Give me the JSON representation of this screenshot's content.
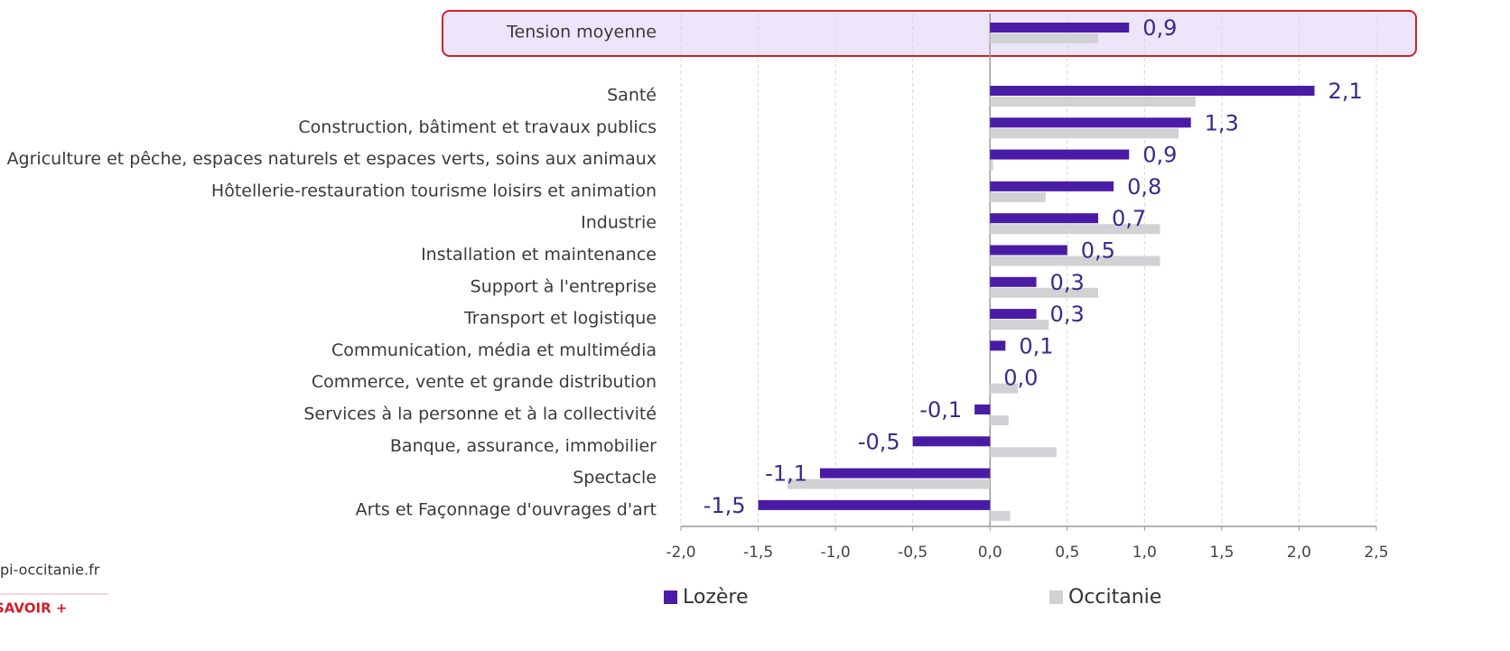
{
  "chart_data": {
    "type": "bar",
    "orientation": "horizontal",
    "categories": [
      "Tension moyenne",
      "Santé",
      "Construction, bâtiment et travaux publics",
      "Agriculture et pêche, espaces naturels et espaces verts, soins aux animaux",
      "Hôtellerie-restauration tourisme loisirs et animation",
      "Industrie",
      "Installation et maintenance",
      "Support à l'entreprise",
      "Transport et logistique",
      "Communication, média et multimédia",
      "Commerce, vente et grande distribution",
      "Services à la personne et à la collectivité",
      "Banque, assurance, immobilier",
      "Spectacle",
      "Arts et Façonnage d'ouvrages d'art"
    ],
    "series": [
      {
        "name": "Lozère",
        "color": "#4a1ca6",
        "values": [
          0.9,
          2.1,
          1.3,
          0.9,
          0.8,
          0.7,
          0.5,
          0.3,
          0.3,
          0.1,
          0.0,
          -0.1,
          -0.5,
          -1.1,
          -1.5
        ],
        "value_labels": [
          "0,9",
          "2,1",
          "1,3",
          "0,9",
          "0,8",
          "0,7",
          "0,5",
          "0,3",
          "0,3",
          "0,1",
          "0,0",
          "-0,1",
          "-0,5",
          "-1,1",
          "-1,5"
        ]
      },
      {
        "name": "Occitanie",
        "color": "#d2d1d3",
        "values": [
          0.7,
          1.33,
          1.22,
          0.02,
          0.36,
          1.1,
          1.1,
          0.7,
          0.38,
          0.0,
          0.18,
          0.12,
          0.43,
          -1.31,
          0.13
        ]
      }
    ],
    "xlim": [
      -2.0,
      2.5
    ],
    "xticks": [
      {
        "value": -2.0,
        "label": "-2,0"
      },
      {
        "value": -1.5,
        "label": "-1,5"
      },
      {
        "value": -1.0,
        "label": "-1,0"
      },
      {
        "value": -0.5,
        "label": "-0,5"
      },
      {
        "value": 0.0,
        "label": "0,0"
      },
      {
        "value": 0.5,
        "label": "0,5"
      },
      {
        "value": 1.0,
        "label": "1,0"
      },
      {
        "value": 1.5,
        "label": "1,5"
      },
      {
        "value": 2.0,
        "label": "2,0"
      },
      {
        "value": 2.5,
        "label": "2,5"
      }
    ],
    "grid": true
  },
  "footer": {
    "site": "pi-occitanie.fr",
    "link": "SAVOIR +"
  }
}
